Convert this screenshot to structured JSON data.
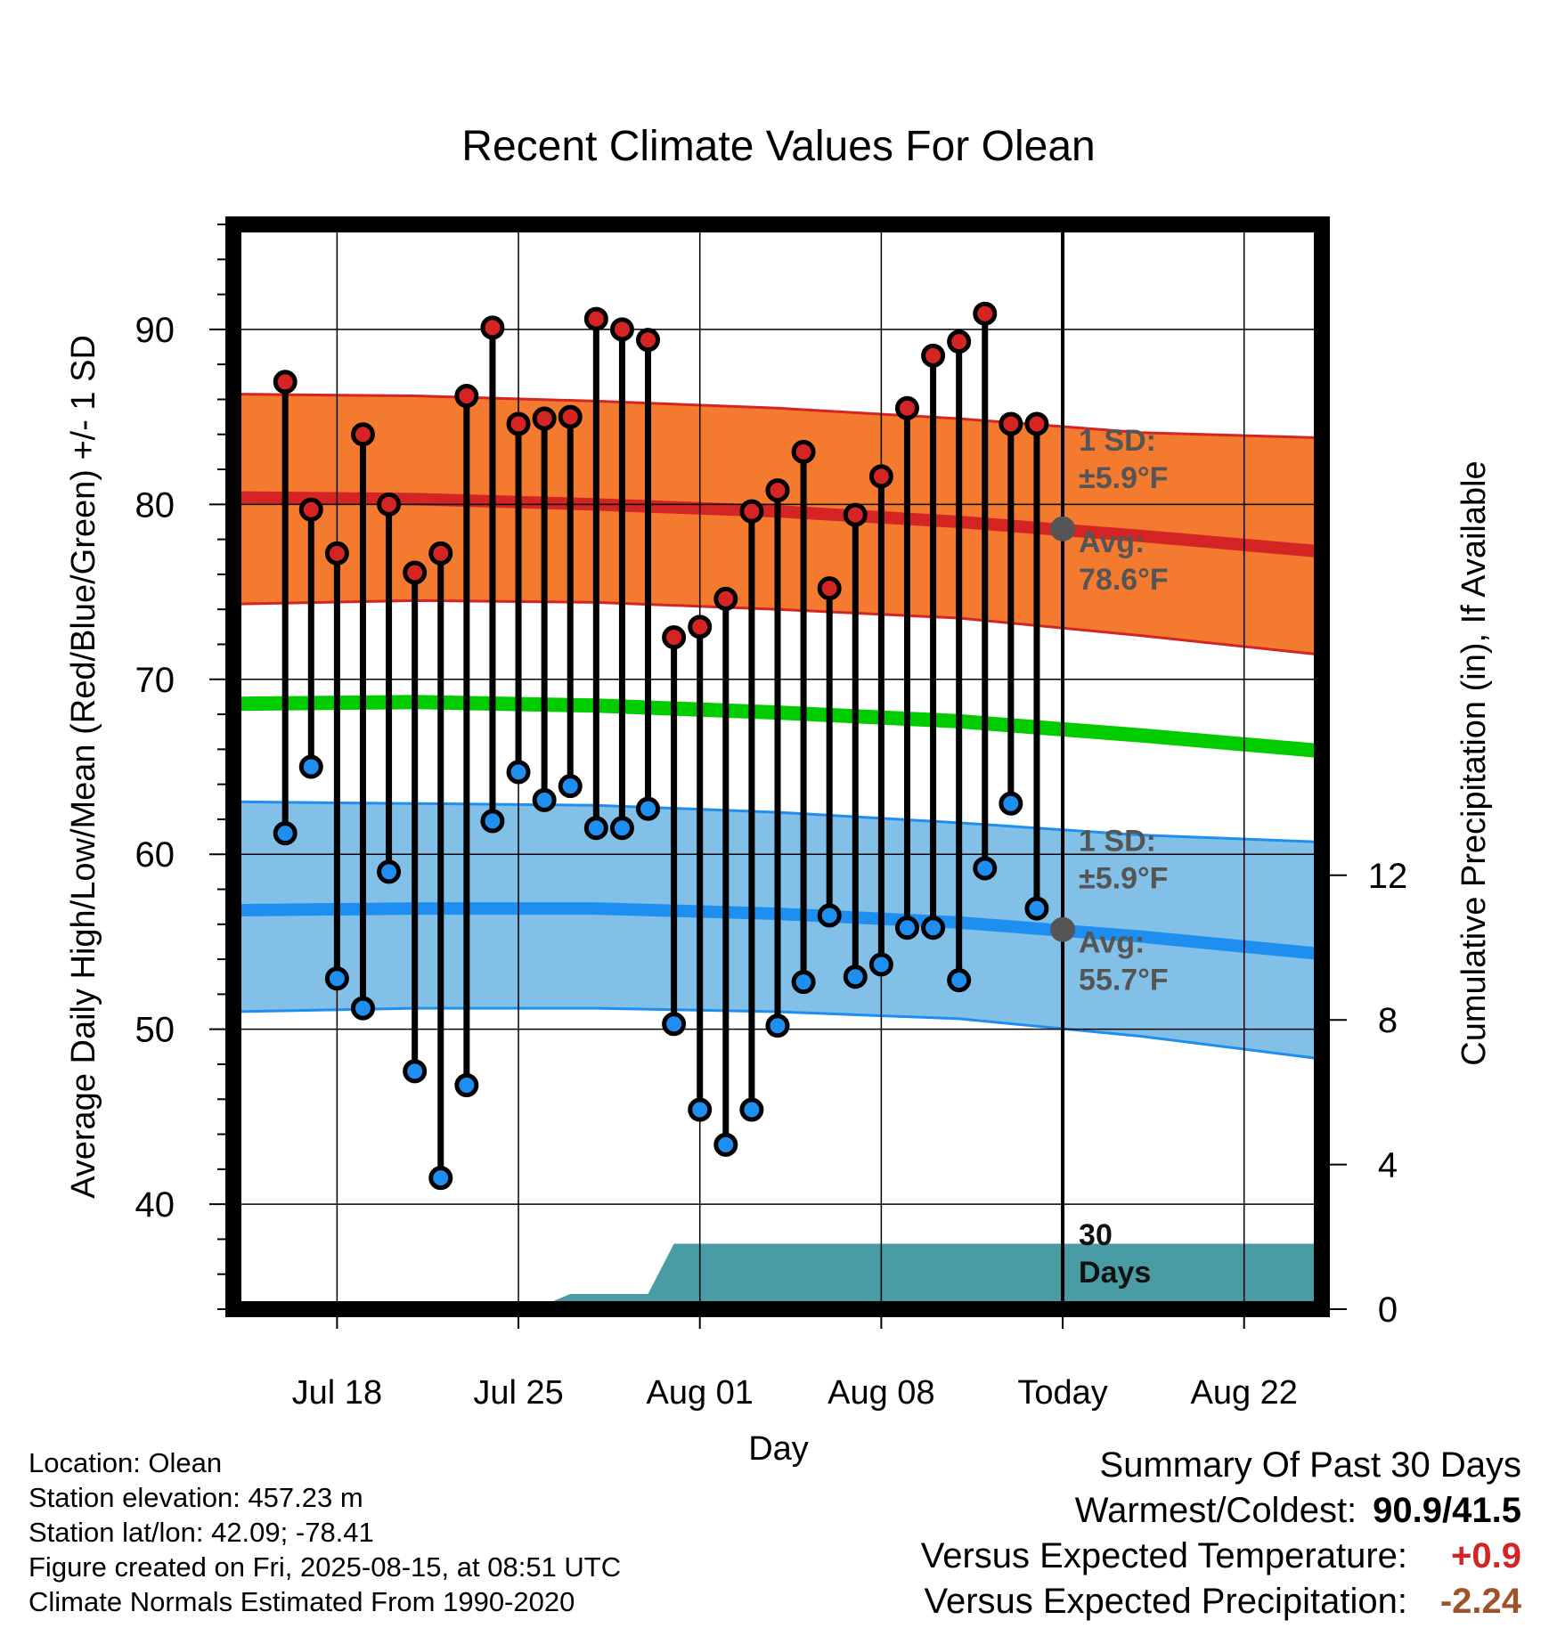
{
  "chart_data": {
    "type": "line",
    "title": "Recent Climate Values For Olean",
    "xlabel": "Day",
    "ylabel": "Average Daily High/Low/Mean (Red/Blue/Green) +/- 1 SD",
    "y2label": "Cumulative Precipitation (in), If Available",
    "xlim": [
      "2025-07-14",
      "2025-08-25"
    ],
    "ylim": [
      34,
      96
    ],
    "y2lim": [
      0,
      30
    ],
    "grid": true,
    "x_ticks": [
      {
        "date": "2025-07-18",
        "label": "Jul 18"
      },
      {
        "date": "2025-07-25",
        "label": "Jul 25"
      },
      {
        "date": "2025-08-01",
        "label": "Aug 01"
      },
      {
        "date": "2025-08-08",
        "label": "Aug 08"
      },
      {
        "date": "2025-08-15",
        "label": "Today"
      },
      {
        "date": "2025-08-22",
        "label": "Aug 22"
      }
    ],
    "y_ticks": [
      40,
      50,
      60,
      70,
      80,
      90
    ],
    "y2_ticks": [
      0,
      4,
      8,
      12
    ],
    "today": "2025-08-15",
    "colors": {
      "high_band": "#f47a30",
      "high_line": "#d42424",
      "low_band": "#82c0e8",
      "low_line": "#1e8ff0",
      "mean_line": "#00cc00",
      "precip": "#4a9ca4",
      "high_dot": "#d42424",
      "low_dot": "#1e8ff0",
      "today_marker": "#555555",
      "annotation": "#555555"
    },
    "daily": {
      "dates": [
        "2025-07-16",
        "2025-07-17",
        "2025-07-18",
        "2025-07-19",
        "2025-07-20",
        "2025-07-21",
        "2025-07-22",
        "2025-07-23",
        "2025-07-24",
        "2025-07-25",
        "2025-07-26",
        "2025-07-27",
        "2025-07-28",
        "2025-07-29",
        "2025-07-30",
        "2025-07-31",
        "2025-08-01",
        "2025-08-02",
        "2025-08-03",
        "2025-08-04",
        "2025-08-05",
        "2025-08-06",
        "2025-08-07",
        "2025-08-08",
        "2025-08-09",
        "2025-08-10",
        "2025-08-11",
        "2025-08-12",
        "2025-08-13",
        "2025-08-14"
      ],
      "high": [
        87.0,
        79.7,
        77.2,
        84.0,
        80.0,
        76.1,
        77.2,
        86.2,
        90.1,
        84.6,
        84.9,
        85.0,
        90.6,
        90.0,
        89.4,
        72.4,
        73.0,
        74.6,
        79.6,
        80.8,
        83.0,
        75.2,
        79.4,
        81.6,
        85.5,
        88.5,
        89.3,
        90.9,
        84.6,
        84.6
      ],
      "low": [
        61.2,
        65.0,
        52.9,
        51.2,
        59.0,
        47.6,
        41.5,
        46.8,
        61.9,
        64.7,
        63.1,
        63.9,
        61.5,
        61.5,
        62.6,
        50.3,
        45.4,
        43.4,
        45.4,
        50.2,
        52.7,
        56.5,
        53.0,
        53.7,
        55.8,
        55.8,
        52.8,
        59.2,
        62.9,
        56.9
      ]
    },
    "normals": {
      "dates": [
        "2025-07-14",
        "2025-07-21",
        "2025-07-28",
        "2025-08-04",
        "2025-08-11",
        "2025-08-18",
        "2025-08-25"
      ],
      "high_avg": [
        80.4,
        80.3,
        80.0,
        79.6,
        79.0,
        78.2,
        77.3
      ],
      "high_sd_upper": [
        86.3,
        86.2,
        85.9,
        85.5,
        84.9,
        84.1,
        83.8
      ],
      "high_sd_lower": [
        74.3,
        74.5,
        74.4,
        74.0,
        73.5,
        72.5,
        71.4
      ],
      "low_avg": [
        56.8,
        56.9,
        56.9,
        56.6,
        56.1,
        55.3,
        54.3
      ],
      "low_sd_upper": [
        63.0,
        62.9,
        62.8,
        62.4,
        61.8,
        61.1,
        60.7
      ],
      "low_sd_lower": [
        51.0,
        51.2,
        51.2,
        51.0,
        50.6,
        49.6,
        48.3
      ],
      "mean_avg": [
        68.6,
        68.7,
        68.5,
        68.1,
        67.6,
        66.8,
        65.9
      ]
    },
    "precip_cumulative": {
      "dates": [
        "2025-07-14",
        "2025-07-19",
        "2025-07-20",
        "2025-07-26",
        "2025-07-27",
        "2025-07-30",
        "2025-07-31",
        "2025-08-25"
      ],
      "values": [
        0.0,
        0.0,
        0.12,
        0.12,
        0.42,
        0.42,
        1.81,
        1.81
      ]
    },
    "annotations": {
      "high_sd": "1 SD:",
      "high_sd_value": "±5.9°F",
      "high_avg_label": "Avg:",
      "high_avg_value": "78.6°F",
      "low_sd": "1 SD:",
      "low_sd_value": "±5.9°F",
      "low_avg_label": "Avg:",
      "low_avg_value": "55.7°F",
      "today_high_avg": 78.6,
      "today_low_avg": 55.7,
      "period_line1": "30",
      "period_line2": "Days"
    }
  },
  "footer": {
    "location": "Location: Olean",
    "elevation": "Station elevation: 457.23 m",
    "latlon": "Station lat/lon: 42.09; -78.41",
    "created": "Figure created on Fri, 2025-08-15, at 08:51 UTC",
    "normals": "Climate Normals Estimated From 1990-2020"
  },
  "summary": {
    "title": "Summary Of Past 30 Days",
    "warmest_coldest_label": "Warmest/Coldest:",
    "warmest_coldest_value": "90.9/41.5",
    "temp_label": "Versus Expected Temperature:",
    "temp_value": "+0.9",
    "temp_color": "#d42424",
    "precip_label": "Versus Expected Precipitation:",
    "precip_value": "-2.24",
    "precip_color": "#a0522d"
  }
}
